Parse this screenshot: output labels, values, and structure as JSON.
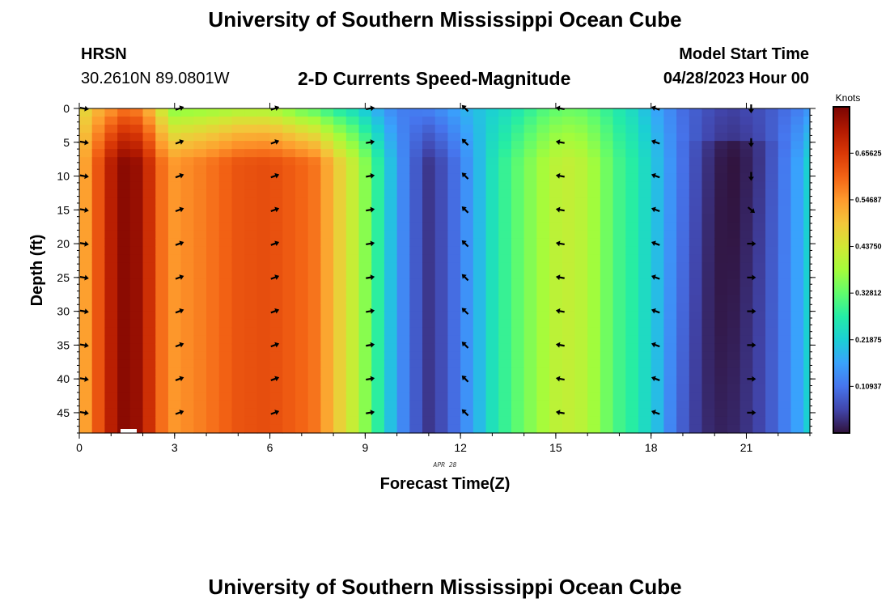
{
  "page": {
    "title_top": "University of Southern Mississippi Ocean Cube",
    "title_bottom": "University of Southern Mississippi Ocean Cube",
    "station": "HRSN",
    "location": "30.2610N  89.0801W",
    "subtitle": "2-D Currents Speed-Magnitude",
    "model_label": "Model Start Time",
    "model_time": "04/28/2023 Hour 00"
  },
  "chart_data": {
    "type": "heatmap",
    "title": "2-D Currents Speed-Magnitude",
    "xlabel": "Forecast Time(Z)",
    "ylabel": "Depth (ft)",
    "date_label": "APR 28",
    "x_range": [
      0,
      23
    ],
    "y_range": [
      0,
      48
    ],
    "x_ticks": [
      0,
      3,
      6,
      9,
      12,
      15,
      18,
      21
    ],
    "y_ticks": [
      0,
      5,
      10,
      15,
      20,
      25,
      30,
      35,
      40,
      45
    ],
    "colorbar": {
      "label": "Knots",
      "range": [
        0,
        0.765
      ],
      "tick_values": [
        0.10937,
        0.21875,
        0.32812,
        0.4375,
        0.54687,
        0.65625
      ],
      "tick_labels": [
        "0.10937",
        "0.21875",
        "0.32812",
        "0.43750",
        "0.54687",
        "0.65625"
      ],
      "colors": [
        "#30123b",
        "#4145ab",
        "#4675ed",
        "#39a2fc",
        "#1bcfd4",
        "#24eca6",
        "#61fc6c",
        "#a4fc3b",
        "#d1e834",
        "#f3c63a",
        "#fe9b2d",
        "#f36315",
        "#d93806",
        "#b11901",
        "#7a0403"
      ]
    },
    "speed_profile": {
      "hours": [
        0,
        0.5,
        1.0,
        1.5,
        2.0,
        2.5,
        3.0,
        4.0,
        5.0,
        6.0,
        7.0,
        7.5,
        8.0,
        8.5,
        9.0,
        9.5,
        10.0,
        10.5,
        11.0,
        11.5,
        12.0,
        12.5,
        13.0,
        13.5,
        14.0,
        14.5,
        15.0,
        15.5,
        16.0,
        16.5,
        17.0,
        17.5,
        18.0,
        18.5,
        19.0,
        19.5,
        20.0,
        20.5,
        21.0,
        21.5,
        22.0,
        22.5,
        23.0
      ],
      "deep_speed": [
        0.5,
        0.6,
        0.7,
        0.76,
        0.72,
        0.6,
        0.55,
        0.58,
        0.62,
        0.63,
        0.6,
        0.58,
        0.5,
        0.44,
        0.36,
        0.26,
        0.16,
        0.09,
        0.04,
        0.07,
        0.12,
        0.18,
        0.25,
        0.3,
        0.34,
        0.38,
        0.41,
        0.42,
        0.4,
        0.35,
        0.3,
        0.27,
        0.22,
        0.16,
        0.11,
        0.07,
        0.04,
        0.03,
        0.04,
        0.06,
        0.1,
        0.15,
        0.22
      ],
      "surface_speed": [
        0.44,
        0.5,
        0.54,
        0.58,
        0.55,
        0.44,
        0.35,
        0.36,
        0.38,
        0.38,
        0.32,
        0.3,
        0.26,
        0.24,
        0.2,
        0.16,
        0.12,
        0.12,
        0.13,
        0.15,
        0.18,
        0.2,
        0.22,
        0.24,
        0.27,
        0.3,
        0.32,
        0.33,
        0.32,
        0.29,
        0.26,
        0.23,
        0.18,
        0.14,
        0.1,
        0.08,
        0.06,
        0.05,
        0.06,
        0.07,
        0.09,
        0.11,
        0.14
      ]
    },
    "vectors": {
      "hours": [
        0,
        3,
        6,
        9,
        12,
        15,
        18,
        21
      ],
      "depths": [
        0,
        5,
        10,
        15,
        20,
        25,
        30,
        35,
        40,
        45
      ],
      "angles_deg": [
        10,
        -20,
        -20,
        -10,
        -135,
        190,
        200,
        90
      ],
      "angle_21_shallow": [
        90,
        90,
        90,
        40,
        0,
        0,
        0,
        0,
        0,
        0
      ]
    }
  }
}
